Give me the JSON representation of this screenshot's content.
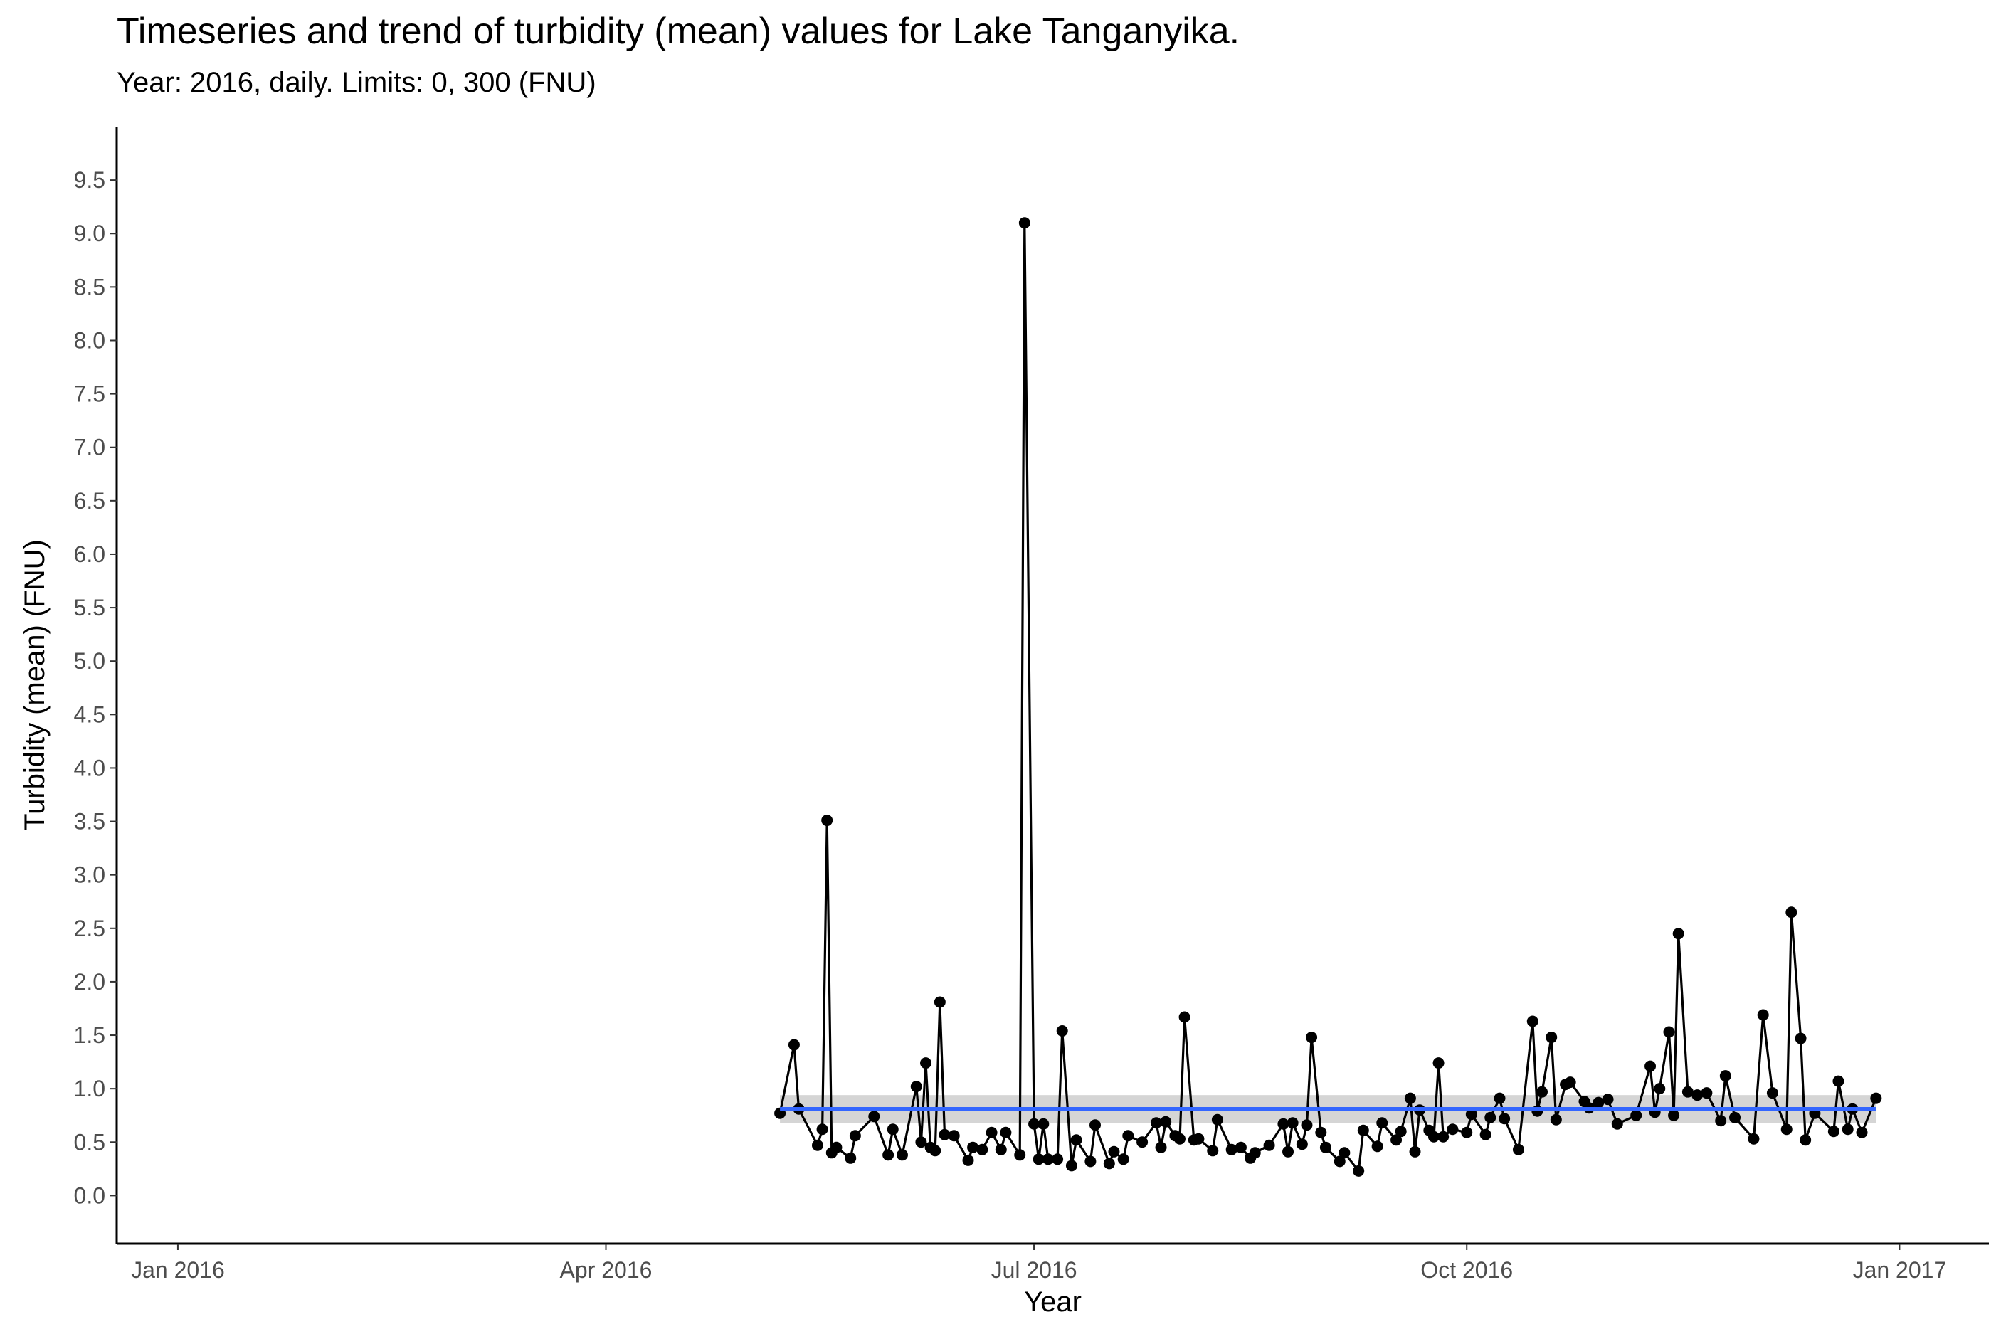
{
  "chart_data": {
    "type": "line",
    "title": "Timeseries and trend of turbidity (mean) values for Lake Tanganyika.",
    "subtitle": "Year: 2016, daily. Limits: 0, 300 (FNU)",
    "xlabel": "Year",
    "ylabel": "Turbidity (mean) (FNU)",
    "x_ticks": [
      "Jan 2016",
      "Apr 2016",
      "Jul 2016",
      "Oct 2016",
      "Jan 2017"
    ],
    "y_ticks": [
      "0.0",
      "0.5",
      "1.0",
      "1.5",
      "2.0",
      "2.5",
      "3.0",
      "3.5",
      "4.0",
      "4.5",
      "5.0",
      "5.5",
      "6.0",
      "6.5",
      "7.0",
      "7.5",
      "8.0",
      "8.5",
      "9.0",
      "9.5"
    ],
    "xlim": [
      "2015-12-19",
      "2017-01-20"
    ],
    "ylim": [
      -0.45,
      10.0
    ],
    "grid": false,
    "series": [
      {
        "points": [
          [
            "2016-05-08",
            0.77
          ],
          [
            "2016-05-11",
            1.41
          ],
          [
            "2016-05-12",
            0.81
          ],
          [
            "2016-05-16",
            0.47
          ],
          [
            "2016-05-17",
            0.62
          ],
          [
            "2016-05-18",
            3.51
          ],
          [
            "2016-05-19",
            0.4
          ],
          [
            "2016-05-20",
            0.45
          ],
          [
            "2016-05-23",
            0.35
          ],
          [
            "2016-05-24",
            0.56
          ],
          [
            "2016-05-28",
            0.74
          ],
          [
            "2016-05-31",
            0.38
          ],
          [
            "2016-06-01",
            0.62
          ],
          [
            "2016-06-03",
            0.38
          ],
          [
            "2016-06-06",
            1.02
          ],
          [
            "2016-06-07",
            0.5
          ],
          [
            "2016-06-08",
            1.24
          ],
          [
            "2016-06-09",
            0.45
          ],
          [
            "2016-06-10",
            0.42
          ],
          [
            "2016-06-11",
            1.81
          ],
          [
            "2016-06-12",
            0.57
          ],
          [
            "2016-06-14",
            0.56
          ],
          [
            "2016-06-17",
            0.33
          ],
          [
            "2016-06-18",
            0.45
          ],
          [
            "2016-06-20",
            0.43
          ],
          [
            "2016-06-22",
            0.59
          ],
          [
            "2016-06-24",
            0.43
          ],
          [
            "2016-06-25",
            0.59
          ],
          [
            "2016-06-28",
            0.38
          ],
          [
            "2016-06-29",
            9.1
          ],
          [
            "2016-07-01",
            0.67
          ],
          [
            "2016-07-02",
            0.34
          ],
          [
            "2016-07-03",
            0.67
          ],
          [
            "2016-07-04",
            0.34
          ],
          [
            "2016-07-06",
            0.34
          ],
          [
            "2016-07-07",
            1.54
          ],
          [
            "2016-07-09",
            0.28
          ],
          [
            "2016-07-10",
            0.52
          ],
          [
            "2016-07-13",
            0.32
          ],
          [
            "2016-07-14",
            0.66
          ],
          [
            "2016-07-17",
            0.3
          ],
          [
            "2016-07-18",
            0.41
          ],
          [
            "2016-07-20",
            0.34
          ],
          [
            "2016-07-21",
            0.56
          ],
          [
            "2016-07-24",
            0.5
          ],
          [
            "2016-07-27",
            0.68
          ],
          [
            "2016-07-28",
            0.45
          ],
          [
            "2016-07-29",
            0.69
          ],
          [
            "2016-07-31",
            0.56
          ],
          [
            "2016-08-01",
            0.53
          ],
          [
            "2016-08-02",
            1.67
          ],
          [
            "2016-08-04",
            0.52
          ],
          [
            "2016-08-05",
            0.53
          ],
          [
            "2016-08-08",
            0.42
          ],
          [
            "2016-08-09",
            0.71
          ],
          [
            "2016-08-12",
            0.43
          ],
          [
            "2016-08-14",
            0.45
          ],
          [
            "2016-08-16",
            0.35
          ],
          [
            "2016-08-17",
            0.4
          ],
          [
            "2016-08-20",
            0.47
          ],
          [
            "2016-08-23",
            0.67
          ],
          [
            "2016-08-24",
            0.41
          ],
          [
            "2016-08-25",
            0.68
          ],
          [
            "2016-08-27",
            0.48
          ],
          [
            "2016-08-28",
            0.66
          ],
          [
            "2016-08-29",
            1.48
          ],
          [
            "2016-08-31",
            0.59
          ],
          [
            "2016-09-01",
            0.45
          ],
          [
            "2016-09-04",
            0.32
          ],
          [
            "2016-09-05",
            0.4
          ],
          [
            "2016-09-08",
            0.23
          ],
          [
            "2016-09-09",
            0.61
          ],
          [
            "2016-09-12",
            0.46
          ],
          [
            "2016-09-13",
            0.68
          ],
          [
            "2016-09-16",
            0.52
          ],
          [
            "2016-09-17",
            0.6
          ],
          [
            "2016-09-19",
            0.91
          ],
          [
            "2016-09-20",
            0.41
          ],
          [
            "2016-09-21",
            0.8
          ],
          [
            "2016-09-23",
            0.61
          ],
          [
            "2016-09-24",
            0.55
          ],
          [
            "2016-09-25",
            1.24
          ],
          [
            "2016-09-26",
            0.55
          ],
          [
            "2016-09-28",
            0.62
          ],
          [
            "2016-10-01",
            0.59
          ],
          [
            "2016-10-02",
            0.76
          ],
          [
            "2016-10-05",
            0.57
          ],
          [
            "2016-10-06",
            0.73
          ],
          [
            "2016-10-08",
            0.91
          ],
          [
            "2016-10-09",
            0.72
          ],
          [
            "2016-10-12",
            0.43
          ],
          [
            "2016-10-15",
            1.63
          ],
          [
            "2016-10-16",
            0.79
          ],
          [
            "2016-10-17",
            0.97
          ],
          [
            "2016-10-19",
            1.48
          ],
          [
            "2016-10-20",
            0.71
          ],
          [
            "2016-10-22",
            1.04
          ],
          [
            "2016-10-23",
            1.06
          ],
          [
            "2016-10-26",
            0.88
          ],
          [
            "2016-10-27",
            0.82
          ],
          [
            "2016-10-29",
            0.87
          ],
          [
            "2016-10-31",
            0.9
          ],
          [
            "2016-11-02",
            0.67
          ],
          [
            "2016-11-06",
            0.75
          ],
          [
            "2016-11-09",
            1.21
          ],
          [
            "2016-11-10",
            0.78
          ],
          [
            "2016-11-11",
            1.0
          ],
          [
            "2016-11-13",
            1.53
          ],
          [
            "2016-11-14",
            0.75
          ],
          [
            "2016-11-15",
            2.45
          ],
          [
            "2016-11-17",
            0.97
          ],
          [
            "2016-11-19",
            0.94
          ],
          [
            "2016-11-21",
            0.96
          ],
          [
            "2016-11-24",
            0.7
          ],
          [
            "2016-11-25",
            1.12
          ],
          [
            "2016-11-27",
            0.73
          ],
          [
            "2016-12-01",
            0.53
          ],
          [
            "2016-12-03",
            1.69
          ],
          [
            "2016-12-05",
            0.96
          ],
          [
            "2016-12-08",
            0.62
          ],
          [
            "2016-12-09",
            2.65
          ],
          [
            "2016-12-11",
            1.47
          ],
          [
            "2016-12-12",
            0.52
          ],
          [
            "2016-12-14",
            0.77
          ],
          [
            "2016-12-18",
            0.6
          ],
          [
            "2016-12-19",
            1.07
          ],
          [
            "2016-12-21",
            0.62
          ],
          [
            "2016-12-22",
            0.81
          ],
          [
            "2016-12-24",
            0.59
          ],
          [
            "2016-12-27",
            0.91
          ]
        ],
        "color": "#000000"
      },
      {
        "type": "trend",
        "x_range": [
          "2016-05-08",
          "2016-12-27"
        ],
        "y": [
          0.81,
          0.81
        ],
        "ci": [
          0.68,
          0.94
        ],
        "color": "#3366ff",
        "ci_color": "#d3d3d3"
      }
    ]
  }
}
